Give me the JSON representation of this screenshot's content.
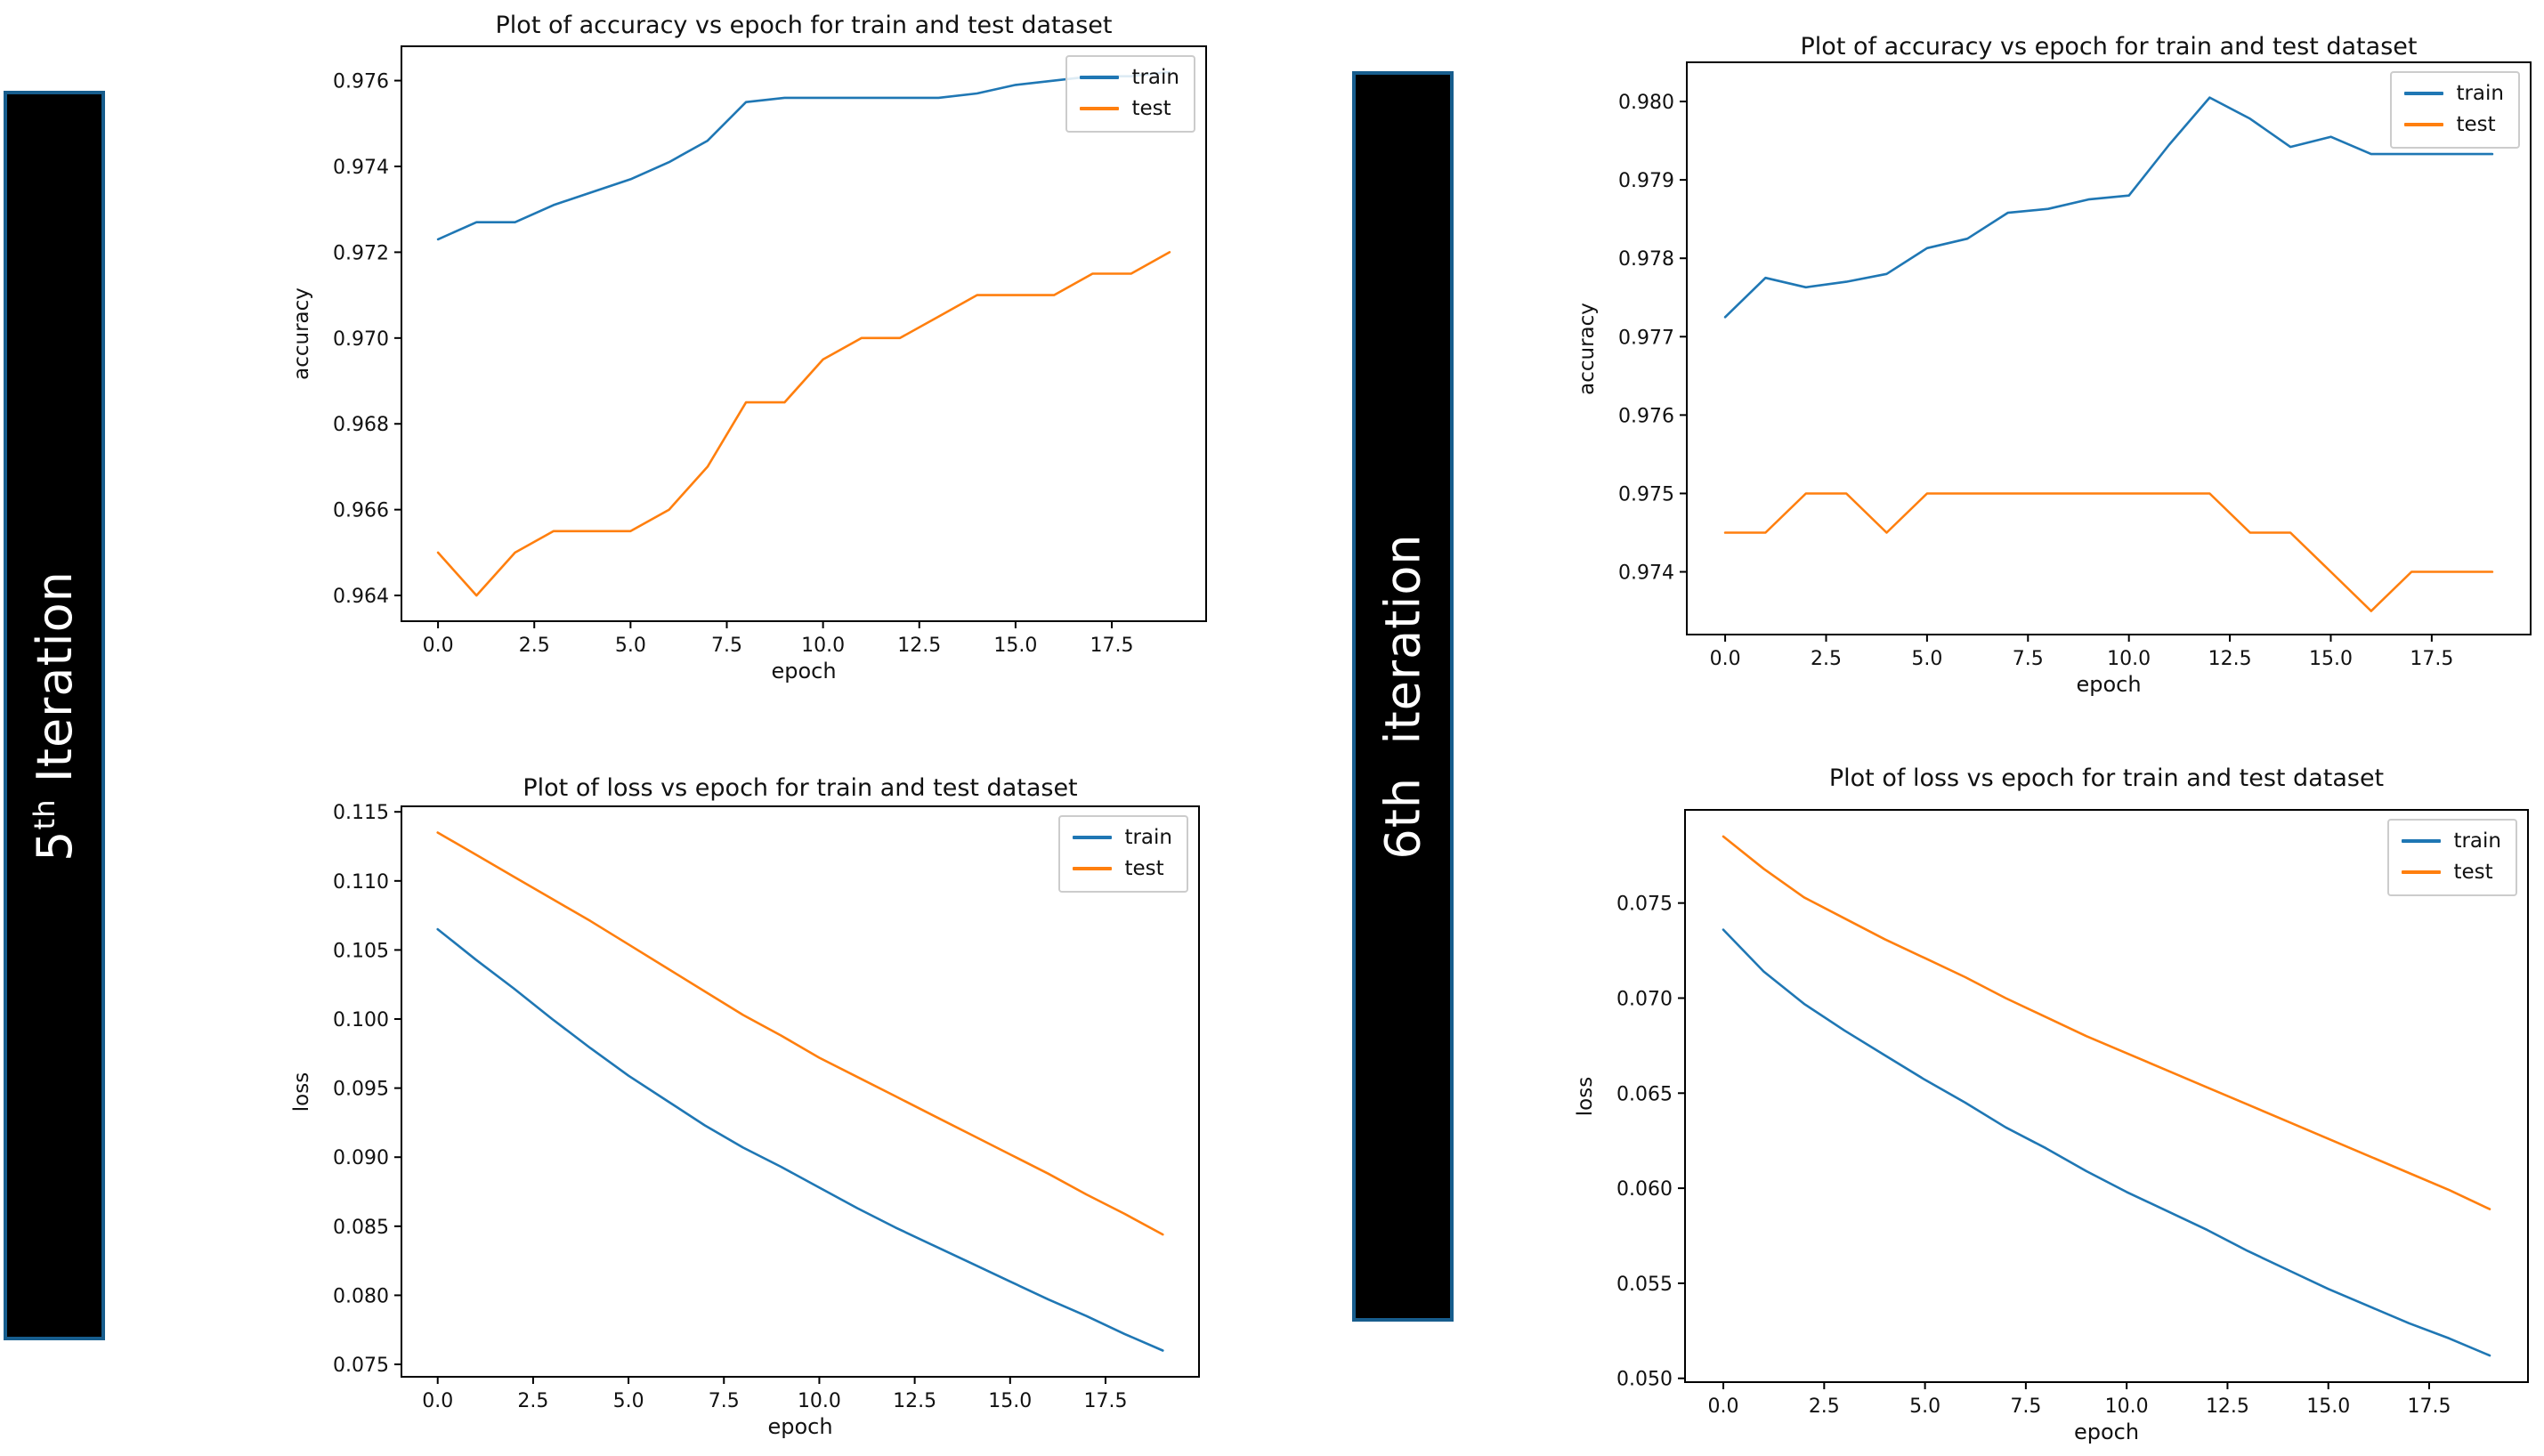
{
  "banners": [
    {
      "prefix": "5",
      "sup": "th",
      "rest": " Iteration",
      "bg": "#000000",
      "border_color": "#175d8d",
      "text_color": "#ffffff"
    },
    {
      "prefix": "6th",
      "sup": "",
      "rest": "  iteration",
      "bg": "#000000",
      "border_color": "#175d8d",
      "text_color": "#ffffff"
    }
  ],
  "colors": {
    "train": "#1f77b4",
    "test": "#ff7f0e",
    "spine": "#000000"
  },
  "chart_data": [
    {
      "type": "line",
      "title": "Plot of accuracy vs epoch for train and test dataset",
      "xlabel": "epoch",
      "ylabel": "accuracy",
      "x": [
        0,
        1,
        2,
        3,
        4,
        5,
        6,
        7,
        8,
        9,
        10,
        11,
        12,
        13,
        14,
        15,
        16,
        17,
        18,
        19
      ],
      "series": [
        {
          "name": "train",
          "color": "#1f77b4",
          "values": [
            0.9723,
            0.9727,
            0.9727,
            0.9731,
            0.9734,
            0.9737,
            0.9741,
            0.9746,
            0.9755,
            0.9756,
            0.9756,
            0.9756,
            0.9756,
            0.9756,
            0.9757,
            0.9759,
            0.976,
            0.9761,
            0.9761,
            0.9762
          ]
        },
        {
          "name": "test",
          "color": "#ff7f0e",
          "values": [
            0.965,
            0.964,
            0.965,
            0.9655,
            0.9655,
            0.9655,
            0.966,
            0.967,
            0.9685,
            0.9685,
            0.9695,
            0.97,
            0.97,
            0.9705,
            0.971,
            0.971,
            0.971,
            0.9715,
            0.9715,
            0.972
          ]
        }
      ],
      "xtick_labels": [
        "0.0",
        "2.5",
        "5.0",
        "7.5",
        "10.0",
        "12.5",
        "15.0",
        "17.5"
      ],
      "ytick_labels": [
        "0.964",
        "0.966",
        "0.968",
        "0.970",
        "0.972",
        "0.974",
        "0.976"
      ],
      "xlim": [
        -0.95,
        19.95
      ],
      "ylim": [
        0.9634,
        0.9768
      ],
      "legend": {
        "position": "upper right",
        "entries": [
          "train",
          "test"
        ]
      },
      "grid": false
    },
    {
      "type": "line",
      "title": "Plot of loss vs epoch for train and test dataset",
      "xlabel": "epoch",
      "ylabel": "loss",
      "x": [
        0,
        1,
        2,
        3,
        4,
        5,
        6,
        7,
        8,
        9,
        10,
        11,
        12,
        13,
        14,
        15,
        16,
        17,
        18,
        19
      ],
      "series": [
        {
          "name": "train",
          "color": "#1f77b4",
          "values": [
            0.1065,
            0.1043,
            0.1022,
            0.1,
            0.0979,
            0.0959,
            0.0941,
            0.0923,
            0.0907,
            0.0893,
            0.0878,
            0.0863,
            0.0849,
            0.0836,
            0.0823,
            0.081,
            0.0797,
            0.0785,
            0.0772,
            0.076
          ]
        },
        {
          "name": "test",
          "color": "#ff7f0e",
          "values": [
            0.1135,
            0.1119,
            0.1103,
            0.1087,
            0.1071,
            0.1054,
            0.1037,
            0.102,
            0.1003,
            0.0988,
            0.0972,
            0.0958,
            0.0944,
            0.093,
            0.0916,
            0.0902,
            0.0888,
            0.0873,
            0.0859,
            0.0844
          ]
        }
      ],
      "xtick_labels": [
        "0.0",
        "2.5",
        "5.0",
        "7.5",
        "10.0",
        "12.5",
        "15.0",
        "17.5"
      ],
      "ytick_labels": [
        "0.075",
        "0.080",
        "0.085",
        "0.090",
        "0.095",
        "0.100",
        "0.105",
        "0.110",
        "0.115"
      ],
      "xlim": [
        -0.95,
        19.95
      ],
      "ylim": [
        0.0741,
        0.1154
      ],
      "legend": {
        "position": "upper right",
        "entries": [
          "train",
          "test"
        ]
      },
      "grid": false
    },
    {
      "type": "line",
      "title": "Plot of accuracy vs epoch for train and test dataset",
      "xlabel": "epoch",
      "ylabel": "accuracy",
      "x": [
        0,
        1,
        2,
        3,
        4,
        5,
        6,
        7,
        8,
        9,
        10,
        11,
        12,
        13,
        14,
        15,
        16,
        17,
        18,
        19
      ],
      "series": [
        {
          "name": "train",
          "color": "#1f77b4",
          "values": [
            0.97725,
            0.97775,
            0.97763,
            0.9777,
            0.9778,
            0.97813,
            0.97825,
            0.97858,
            0.97863,
            0.97875,
            0.9788,
            0.97945,
            0.98005,
            0.97978,
            0.97942,
            0.97955,
            0.97933,
            0.97933,
            0.97933,
            0.97933
          ]
        },
        {
          "name": "test",
          "color": "#ff7f0e",
          "values": [
            0.9745,
            0.9745,
            0.975,
            0.975,
            0.9745,
            0.975,
            0.975,
            0.975,
            0.975,
            0.975,
            0.975,
            0.975,
            0.975,
            0.9745,
            0.9745,
            0.974,
            0.9735,
            0.974,
            0.974,
            0.974
          ]
        }
      ],
      "xtick_labels": [
        "0.0",
        "2.5",
        "5.0",
        "7.5",
        "10.0",
        "12.5",
        "15.0",
        "17.5"
      ],
      "ytick_labels": [
        "0.974",
        "0.975",
        "0.976",
        "0.977",
        "0.978",
        "0.979",
        "0.980"
      ],
      "xlim": [
        -0.95,
        19.95
      ],
      "ylim": [
        0.9732,
        0.9805
      ],
      "legend": {
        "position": "upper right",
        "entries": [
          "train",
          "test"
        ]
      },
      "grid": false
    },
    {
      "type": "line",
      "title": "Plot of loss vs epoch for train and test dataset",
      "xlabel": "epoch",
      "ylabel": "loss",
      "x": [
        0,
        1,
        2,
        3,
        4,
        5,
        6,
        7,
        8,
        9,
        10,
        11,
        12,
        13,
        14,
        15,
        16,
        17,
        18,
        19
      ],
      "series": [
        {
          "name": "train",
          "color": "#1f77b4",
          "values": [
            0.0736,
            0.0714,
            0.0697,
            0.0683,
            0.067,
            0.0657,
            0.0645,
            0.0632,
            0.0621,
            0.0609,
            0.0598,
            0.0588,
            0.0578,
            0.0567,
            0.0557,
            0.0547,
            0.0538,
            0.0529,
            0.0521,
            0.0512
          ]
        },
        {
          "name": "test",
          "color": "#ff7f0e",
          "values": [
            0.0785,
            0.0768,
            0.0753,
            0.0742,
            0.0731,
            0.0721,
            0.0711,
            0.07,
            0.069,
            0.068,
            0.0671,
            0.0662,
            0.0653,
            0.0644,
            0.0635,
            0.0626,
            0.0617,
            0.0608,
            0.0599,
            0.0589
          ]
        }
      ],
      "xtick_labels": [
        "0.0",
        "2.5",
        "5.0",
        "7.5",
        "10.0",
        "12.5",
        "15.0",
        "17.5"
      ],
      "ytick_labels": [
        "0.050",
        "0.055",
        "0.060",
        "0.065",
        "0.070",
        "0.075"
      ],
      "xlim": [
        -0.95,
        19.95
      ],
      "ylim": [
        0.0498,
        0.0799
      ],
      "legend": {
        "position": "upper right",
        "entries": [
          "train",
          "test"
        ]
      },
      "grid": false
    }
  ]
}
